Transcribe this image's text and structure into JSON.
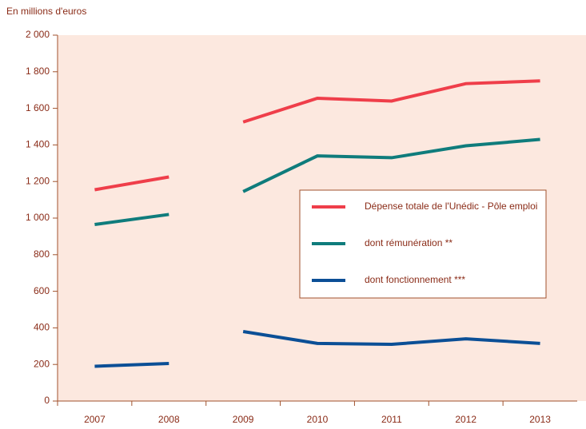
{
  "chart_data": {
    "type": "line",
    "y_axis_label": "En millions d'euros",
    "categories": [
      "2007",
      "2008",
      "2009",
      "2010",
      "2011",
      "2012",
      "2013"
    ],
    "gap_after_index": 1,
    "series": [
      {
        "name": "Dépense totale de l'Unédic - Pôle emploi",
        "color": "#ef3e4a",
        "values": [
          1155,
          1225,
          1525,
          1655,
          1640,
          1735,
          1750
        ]
      },
      {
        "name": "dont rémunération **",
        "color": "#0f7c7c",
        "values": [
          965,
          1020,
          1145,
          1340,
          1330,
          1395,
          1430
        ]
      },
      {
        "name": "dont fonctionnement ***",
        "color": "#0b4f96",
        "values": [
          190,
          205,
          380,
          315,
          310,
          340,
          315
        ]
      }
    ],
    "ylim": [
      0,
      2000
    ],
    "yticks": [
      0,
      200,
      400,
      600,
      800,
      {
        "value": 1000,
        "label": "1 000"
      },
      {
        "value": 1200,
        "label": "1 200"
      },
      {
        "value": 1400,
        "label": "1 400"
      },
      {
        "value": 1600,
        "label": "1 600"
      },
      {
        "value": 1800,
        "label": "1 800"
      },
      {
        "value": 2000,
        "label": "2 000"
      }
    ]
  }
}
